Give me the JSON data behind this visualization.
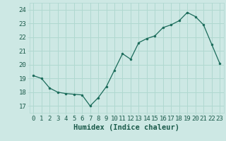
{
  "x": [
    0,
    1,
    2,
    3,
    4,
    5,
    6,
    7,
    8,
    9,
    10,
    11,
    12,
    13,
    14,
    15,
    16,
    17,
    18,
    19,
    20,
    21,
    22,
    23
  ],
  "y": [
    19.2,
    19.0,
    18.3,
    18.0,
    17.9,
    17.85,
    17.8,
    17.0,
    17.6,
    18.4,
    19.6,
    20.8,
    20.4,
    21.6,
    21.9,
    22.1,
    22.7,
    22.9,
    23.2,
    23.8,
    23.5,
    22.9,
    21.5,
    20.1
  ],
  "xlabel": "Humidex (Indice chaleur)",
  "xlim": [
    -0.5,
    23.5
  ],
  "ylim": [
    16.5,
    24.5
  ],
  "yticks": [
    17,
    18,
    19,
    20,
    21,
    22,
    23,
    24
  ],
  "xticks": [
    0,
    1,
    2,
    3,
    4,
    5,
    6,
    7,
    8,
    9,
    10,
    11,
    12,
    13,
    14,
    15,
    16,
    17,
    18,
    19,
    20,
    21,
    22,
    23
  ],
  "line_color": "#1a6b5a",
  "marker_color": "#1a6b5a",
  "bg_color": "#cde8e4",
  "grid_color": "#b0d8d0",
  "tick_label_color": "#1a5a4a",
  "xlabel_color": "#1a5a4a",
  "font_size": 6.5,
  "xlabel_fontsize": 7.5
}
